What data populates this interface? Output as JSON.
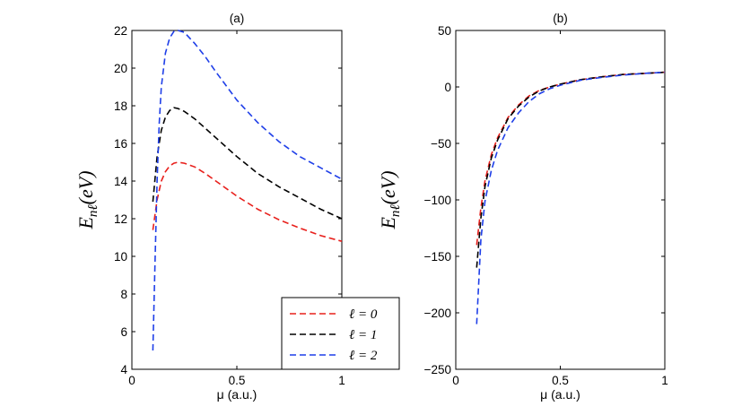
{
  "chart_data": [
    {
      "type": "line",
      "title": "(a)",
      "xlabel": "μ (a.u.)",
      "ylabel": "E_nℓ(eV)",
      "ylabel_main": "E",
      "ylabel_sub": "nℓ",
      "ylabel_rest": "(eV)",
      "xlim": [
        0,
        1
      ],
      "ylim": [
        4,
        22
      ],
      "xticks": [
        0,
        0.5,
        1
      ],
      "xtick_labels": [
        "0",
        "0.5",
        "1"
      ],
      "yticks": [
        4,
        6,
        8,
        10,
        12,
        14,
        16,
        18,
        20,
        22
      ],
      "ytick_labels": [
        "4",
        "6",
        "8",
        "10",
        "12",
        "14",
        "16",
        "18",
        "20",
        "22"
      ],
      "grid": false,
      "legend_position": "bottom-right",
      "series": [
        {
          "name": "ℓ = 0",
          "color": "#e8201c",
          "x": [
            0.1,
            0.12,
            0.14,
            0.16,
            0.18,
            0.2,
            0.22,
            0.25,
            0.3,
            0.35,
            0.4,
            0.5,
            0.6,
            0.7,
            0.8,
            0.9,
            1.0
          ],
          "y": [
            11.4,
            13.0,
            14.0,
            14.5,
            14.8,
            14.95,
            15.0,
            14.95,
            14.75,
            14.4,
            14.0,
            13.2,
            12.5,
            11.95,
            11.5,
            11.1,
            10.8
          ]
        },
        {
          "name": "ℓ = 1",
          "color": "#000000",
          "x": [
            0.1,
            0.12,
            0.14,
            0.16,
            0.18,
            0.2,
            0.22,
            0.25,
            0.3,
            0.35,
            0.4,
            0.5,
            0.6,
            0.7,
            0.8,
            0.9,
            1.0
          ],
          "y": [
            12.9,
            15.3,
            16.7,
            17.4,
            17.75,
            17.9,
            17.85,
            17.7,
            17.3,
            16.8,
            16.3,
            15.3,
            14.4,
            13.7,
            13.1,
            12.5,
            12.0
          ]
        },
        {
          "name": "ℓ = 2",
          "color": "#1f3fe8",
          "x": [
            0.1,
            0.11,
            0.12,
            0.13,
            0.14,
            0.16,
            0.18,
            0.2,
            0.22,
            0.25,
            0.3,
            0.35,
            0.4,
            0.5,
            0.6,
            0.7,
            0.8,
            0.9,
            1.0
          ],
          "y": [
            5.0,
            9.5,
            14.0,
            17.0,
            19.0,
            20.8,
            21.6,
            21.95,
            22.0,
            21.9,
            21.3,
            20.6,
            19.8,
            18.3,
            17.1,
            16.1,
            15.3,
            14.7,
            14.1
          ]
        }
      ]
    },
    {
      "type": "line",
      "title": "(b)",
      "xlabel": "μ (a.u.)",
      "ylabel": "E_nℓ(eV)",
      "ylabel_main": "E",
      "ylabel_sub": "nℓ",
      "ylabel_rest": "(eV)",
      "xlim": [
        0,
        1
      ],
      "ylim": [
        -250,
        50
      ],
      "xticks": [
        0,
        0.5,
        1
      ],
      "xtick_labels": [
        "0",
        "0.5",
        "1"
      ],
      "yticks": [
        -250,
        -200,
        -150,
        -100,
        -50,
        0,
        50
      ],
      "ytick_labels": [
        "−250",
        "−200",
        "−150",
        "−100",
        "−50",
        "0",
        "50"
      ],
      "grid": false,
      "series": [
        {
          "name": "ℓ = 0",
          "color": "#e8201c",
          "x": [
            0.1,
            0.12,
            0.14,
            0.17,
            0.2,
            0.25,
            0.3,
            0.35,
            0.4,
            0.45,
            0.5,
            0.6,
            0.7,
            0.8,
            0.9,
            1.0
          ],
          "y": [
            -140,
            -107,
            -83,
            -60,
            -45,
            -27,
            -16,
            -8,
            -3,
            0,
            2.5,
            6.5,
            9,
            11,
            12,
            13
          ]
        },
        {
          "name": "ℓ = 1",
          "color": "#000000",
          "x": [
            0.1,
            0.12,
            0.14,
            0.17,
            0.2,
            0.25,
            0.3,
            0.35,
            0.4,
            0.45,
            0.5,
            0.6,
            0.7,
            0.8,
            0.9,
            1.0
          ],
          "y": [
            -160,
            -116,
            -88,
            -63,
            -47,
            -28,
            -17,
            -9,
            -3.5,
            0,
            2.5,
            6.5,
            9,
            11,
            12,
            13
          ]
        },
        {
          "name": "ℓ = 2",
          "color": "#1f3fe8",
          "x": [
            0.1,
            0.12,
            0.14,
            0.17,
            0.2,
            0.25,
            0.3,
            0.35,
            0.4,
            0.45,
            0.5,
            0.6,
            0.7,
            0.8,
            0.9,
            1.0
          ],
          "y": [
            -210,
            -135,
            -101,
            -74,
            -56,
            -36,
            -23,
            -13,
            -6,
            -1.5,
            1.5,
            6,
            8.5,
            10.5,
            12,
            13
          ]
        }
      ]
    }
  ],
  "legend": [
    {
      "label": "ℓ = 0",
      "color": "#e8201c"
    },
    {
      "label": "ℓ = 1",
      "color": "#000000"
    },
    {
      "label": "ℓ = 2",
      "color": "#1f3fe8"
    }
  ]
}
